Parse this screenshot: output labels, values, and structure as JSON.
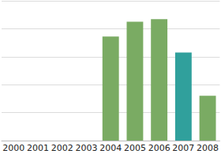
{
  "chart_data": {
    "type": "bar",
    "categories": [
      "2000",
      "2001",
      "2002",
      "2003",
      "2004",
      "2005",
      "2006",
      "2007",
      "2008"
    ],
    "values": [
      null,
      null,
      null,
      null,
      3.72,
      4.25,
      4.34,
      3.15,
      1.6
    ],
    "colors": [
      "#7aab63",
      "#7aab63",
      "#7aab63",
      "#7aab63",
      "#7aab63",
      "#7aab63",
      "#7aab63",
      "#30a09c",
      "#7aab63"
    ],
    "ylim": [
      0,
      5
    ],
    "yticks": [
      0,
      1,
      2,
      3,
      4,
      5
    ],
    "grid": true,
    "tick_labels": "x"
  }
}
